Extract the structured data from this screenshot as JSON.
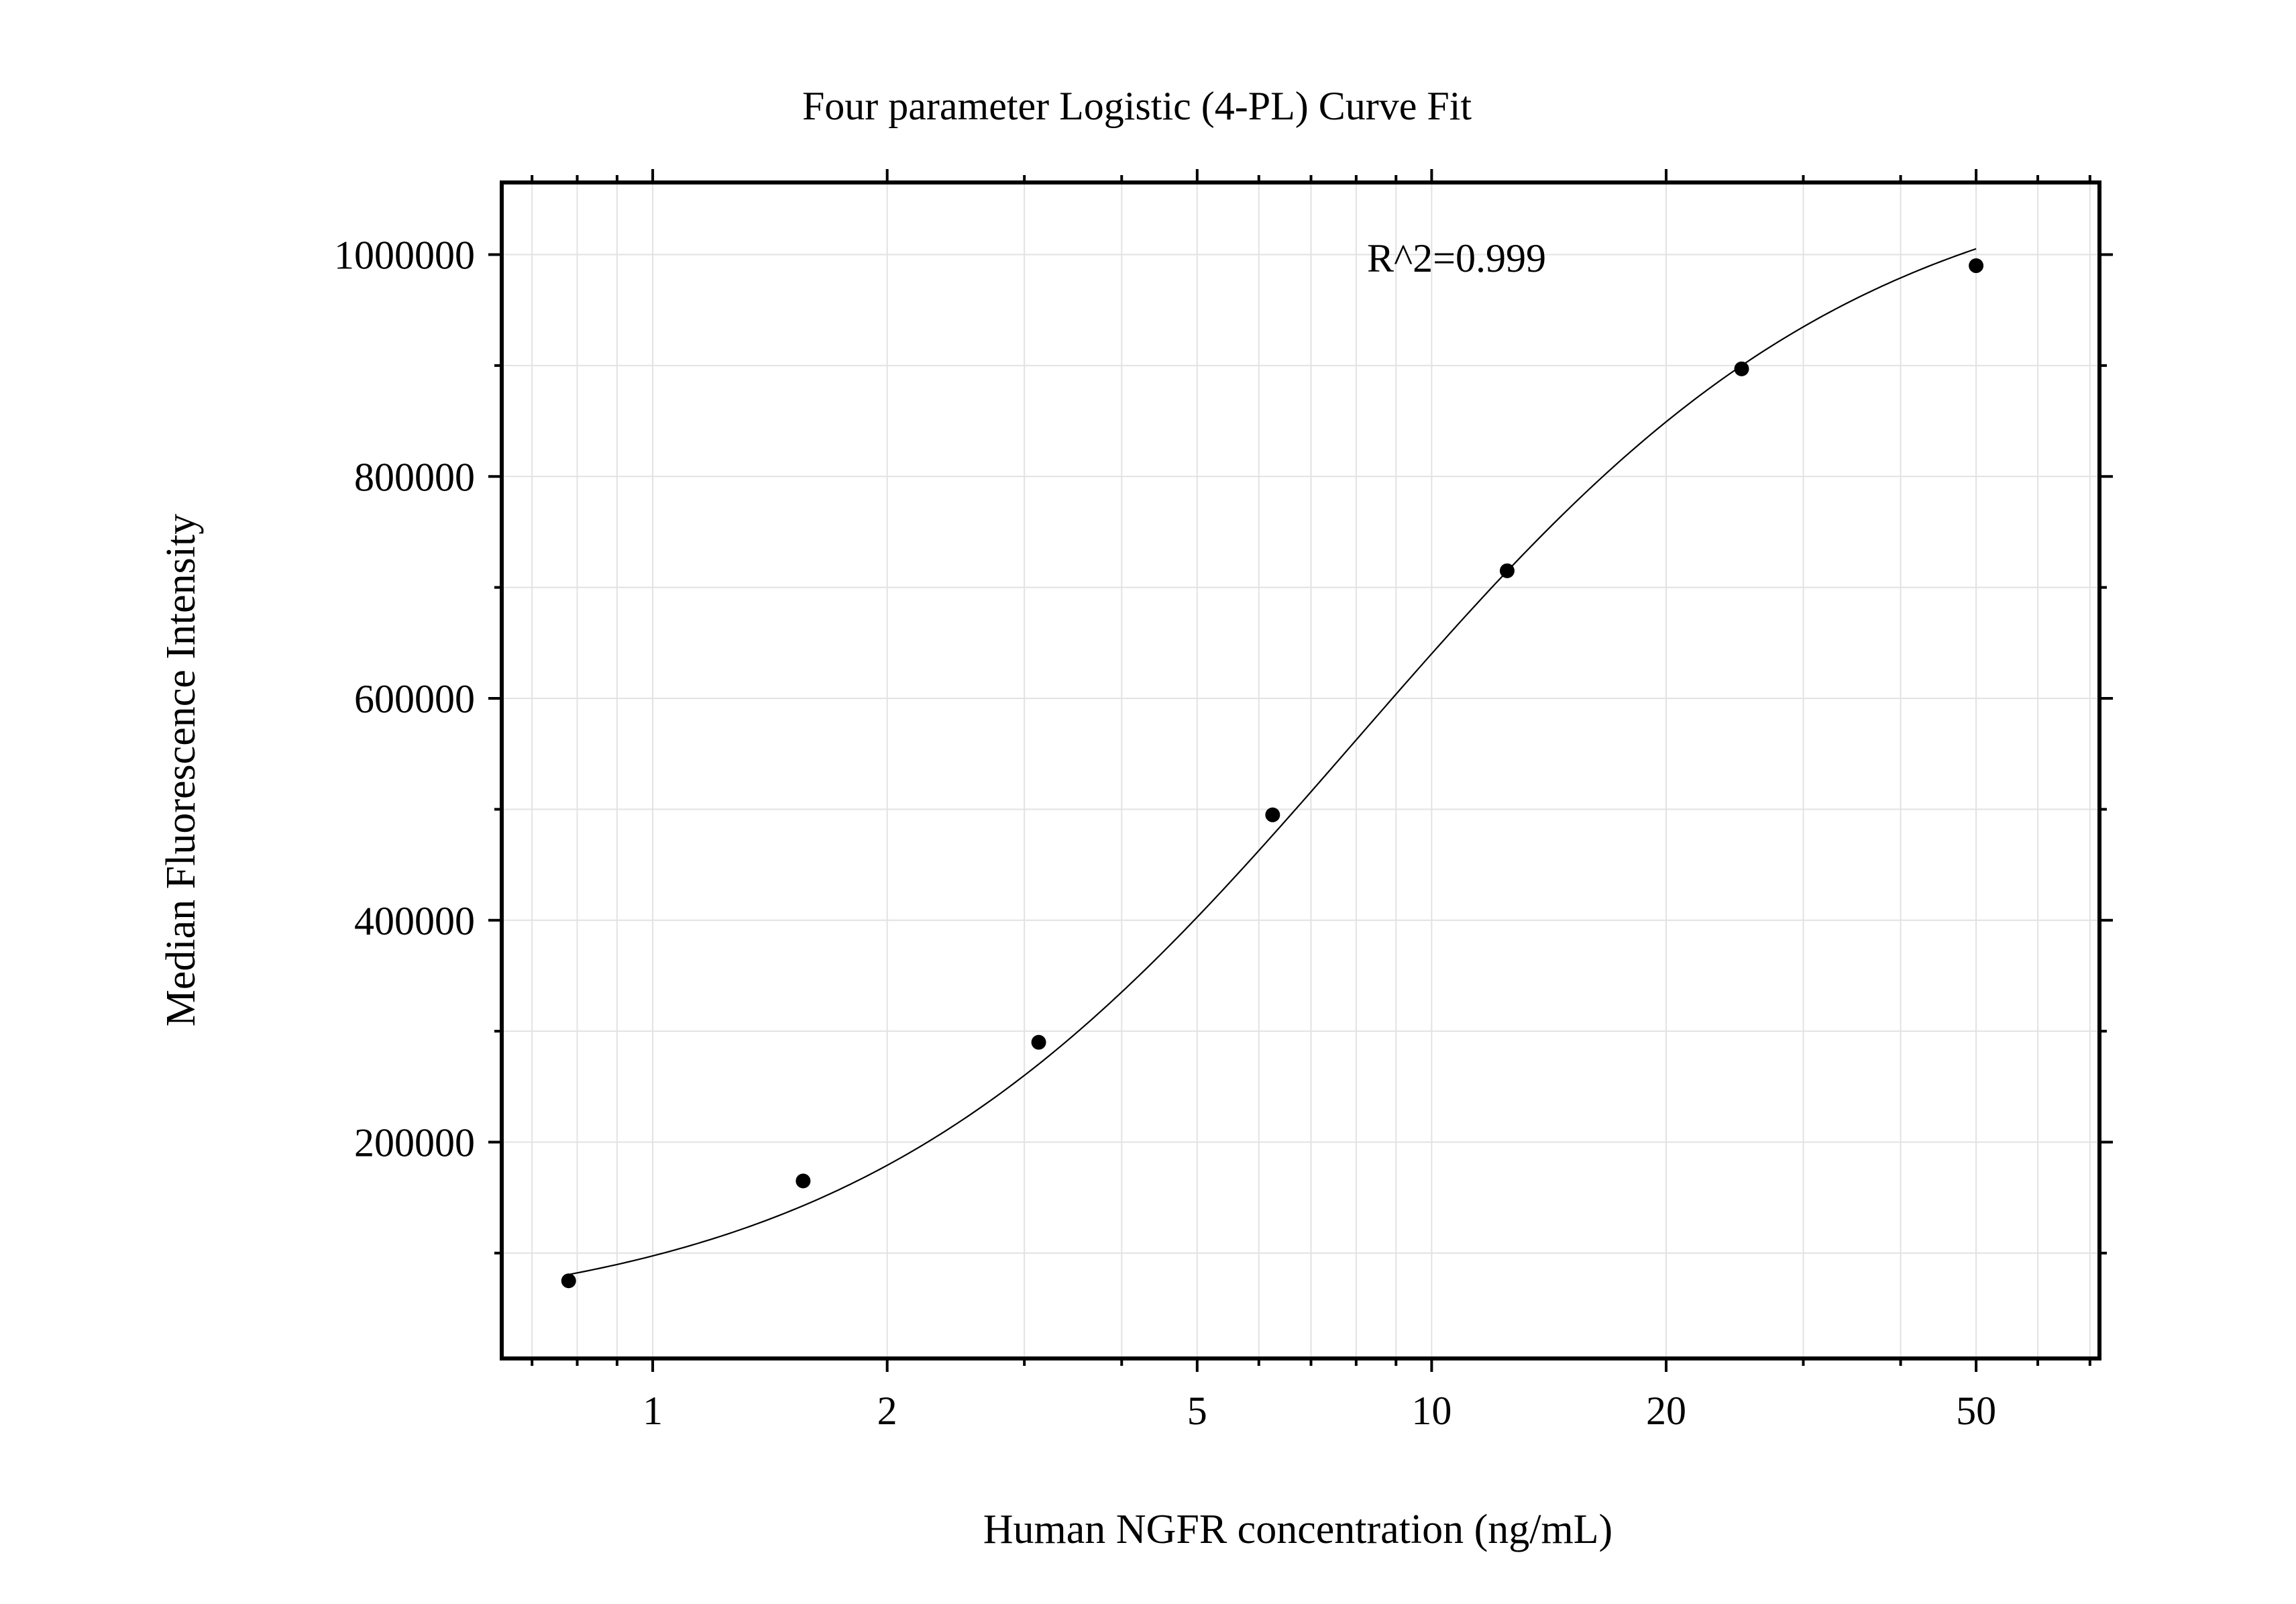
{
  "chart_data": {
    "type": "scatter",
    "title": "Four parameter Logistic (4-PL) Curve Fit",
    "xlabel": "Human NGFR concentration (ng/mL)",
    "ylabel": "Median Fluorescence Intensity",
    "x_scale": "log",
    "xlim": [
      0.64,
      72
    ],
    "ylim": [
      5000,
      1065000
    ],
    "x_ticks": [
      1,
      2,
      5,
      10,
      20,
      50
    ],
    "x_tick_labels": [
      "1",
      "2",
      "5",
      "10",
      "20",
      "50"
    ],
    "x_minor_ticks": [
      0.7,
      0.8,
      0.9,
      3,
      4,
      6,
      7,
      8,
      9,
      30,
      40,
      60,
      70
    ],
    "y_ticks": [
      200000,
      400000,
      600000,
      800000,
      1000000
    ],
    "y_tick_labels": [
      "200000",
      "400000",
      "600000",
      "800000",
      "1000000"
    ],
    "y_minor_ticks": [
      100000,
      300000,
      500000,
      700000,
      900000
    ],
    "grid": true,
    "annotation": "R^2=0.999",
    "series": [
      {
        "marker": "circle",
        "color": "#000000",
        "x": [
          0.78,
          1.56,
          3.13,
          6.25,
          12.5,
          25,
          50
        ],
        "y": [
          75000,
          165000,
          290000,
          495000,
          715000,
          897000,
          990000
        ]
      }
    ],
    "fit": {
      "type": "4-PL",
      "A": 35000,
      "B": 1.33,
      "C": 8.0,
      "D": 1090000
    }
  }
}
